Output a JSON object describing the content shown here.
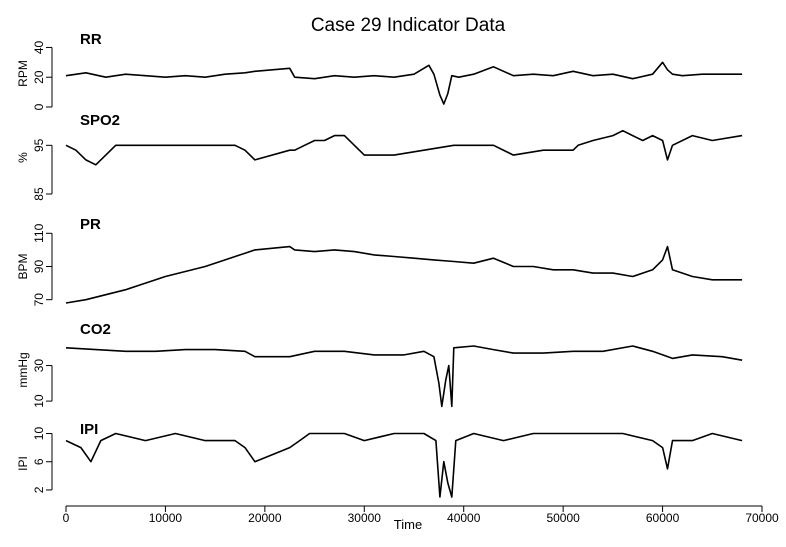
{
  "chart_data": {
    "type": "line",
    "title": "Case 29 Indicator Data",
    "xlabel": "Time",
    "xlim": [
      0,
      70000
    ],
    "xticks": [
      0,
      10000,
      20000,
      30000,
      40000,
      50000,
      60000,
      70000
    ],
    "grid": false,
    "panels": [
      {
        "name": "RR",
        "ylabel": "RPM",
        "ylim": [
          0,
          45
        ],
        "yticks": [
          0,
          20,
          40
        ],
        "x": [
          0,
          2000,
          4000,
          6000,
          8000,
          10000,
          12000,
          14000,
          16000,
          18000,
          19000,
          22500,
          23000,
          25000,
          27000,
          29000,
          31000,
          33000,
          35000,
          36500,
          37000,
          37600,
          38000,
          38400,
          38800,
          39500,
          41000,
          43000,
          45000,
          47000,
          49000,
          51000,
          53000,
          55000,
          57000,
          59000,
          60000,
          60500,
          61000,
          62000,
          64000,
          66000,
          68000
        ],
        "values": [
          21,
          23,
          20,
          22,
          21,
          20,
          21,
          20,
          22,
          23,
          24,
          26,
          20,
          19,
          21,
          20,
          21,
          20,
          22,
          28,
          22,
          8,
          2,
          9,
          21,
          20,
          22,
          27,
          21,
          22,
          21,
          24,
          21,
          22,
          19,
          22,
          30,
          25,
          22,
          21,
          22,
          22,
          22
        ]
      },
      {
        "name": "SPO2",
        "ylabel": "%",
        "ylim": [
          85,
          100
        ],
        "yticks": [
          85,
          95
        ],
        "x": [
          0,
          1000,
          2000,
          3000,
          4000,
          5000,
          8000,
          11000,
          14000,
          17000,
          18000,
          19000,
          22500,
          23000,
          24000,
          25000,
          26000,
          27000,
          28000,
          30000,
          33000,
          36000,
          39000,
          42000,
          43000,
          45000,
          48000,
          51000,
          51500,
          53000,
          55000,
          56000,
          57000,
          58000,
          59000,
          60000,
          60500,
          61000,
          63000,
          65000,
          68000
        ],
        "values": [
          95,
          94,
          92,
          91,
          93,
          95,
          95,
          95,
          95,
          95,
          94,
          92,
          94,
          94,
          95,
          96,
          96,
          97,
          97,
          93,
          93,
          94,
          95,
          95,
          95,
          93,
          94,
          94,
          95,
          96,
          97,
          98,
          97,
          96,
          97,
          96,
          92,
          95,
          97,
          96,
          97
        ]
      },
      {
        "name": "PR",
        "ylabel": "BPM",
        "ylim": [
          65,
          115
        ],
        "yticks": [
          70,
          90,
          110
        ],
        "x": [
          0,
          2000,
          4000,
          6000,
          8000,
          10000,
          12000,
          14000,
          16000,
          18000,
          19000,
          22500,
          23000,
          25000,
          27000,
          29000,
          31000,
          33000,
          35000,
          37000,
          39000,
          41000,
          43000,
          45000,
          47000,
          49000,
          51000,
          53000,
          55000,
          57000,
          59000,
          60000,
          60500,
          61000,
          63000,
          65000,
          68000
        ],
        "values": [
          68,
          70,
          73,
          76,
          80,
          84,
          87,
          90,
          94,
          98,
          100,
          102,
          100,
          99,
          100,
          99,
          97,
          96,
          95,
          94,
          93,
          92,
          95,
          90,
          90,
          88,
          88,
          86,
          86,
          84,
          88,
          94,
          102,
          88,
          84,
          82,
          82
        ]
      },
      {
        "name": "CO2",
        "ylabel": "mmHg",
        "ylim": [
          5,
          50
        ],
        "yticks": [
          10,
          30
        ],
        "x": [
          0,
          3000,
          6000,
          9000,
          12000,
          15000,
          18000,
          19000,
          22500,
          25000,
          28000,
          31000,
          34000,
          36000,
          37000,
          37500,
          37800,
          38200,
          38500,
          38800,
          39000,
          41000,
          43000,
          45000,
          48000,
          51000,
          54000,
          57000,
          59000,
          61000,
          63000,
          66000,
          68000
        ],
        "values": [
          40,
          39,
          38,
          38,
          39,
          39,
          38,
          35,
          35,
          38,
          38,
          36,
          36,
          38,
          35,
          20,
          7,
          22,
          30,
          7,
          40,
          41,
          39,
          37,
          37,
          38,
          38,
          41,
          38,
          34,
          36,
          35,
          33
        ]
      },
      {
        "name": "IPI",
        "ylabel": "IPI",
        "ylim": [
          1,
          10.5
        ],
        "yticks": [
          2,
          6,
          10
        ],
        "x": [
          0,
          1500,
          2500,
          3500,
          5000,
          8000,
          11000,
          14000,
          17000,
          18000,
          19000,
          22500,
          23500,
          24500,
          28000,
          30000,
          33000,
          36000,
          37200,
          37600,
          38000,
          38400,
          38800,
          39200,
          41000,
          44000,
          47000,
          50000,
          53000,
          56000,
          59000,
          60000,
          60500,
          61000,
          63000,
          65000,
          68000
        ],
        "values": [
          9,
          8,
          6,
          9,
          10,
          9,
          10,
          9,
          9,
          8,
          6,
          8,
          9,
          10,
          10,
          9,
          10,
          10,
          9,
          1,
          6,
          3,
          1,
          9,
          10,
          9,
          10,
          10,
          10,
          10,
          9,
          8,
          5,
          9,
          9,
          10,
          9
        ]
      }
    ]
  }
}
